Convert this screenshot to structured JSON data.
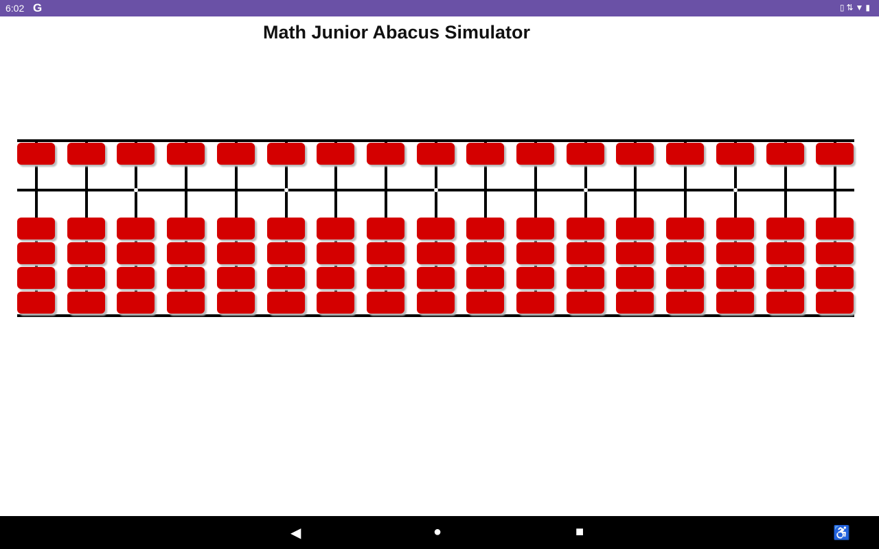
{
  "status_bar": {
    "time": "6:02",
    "google_icon": "G",
    "right_icons": [
      "vibrate-icon",
      "data-icon",
      "wifi-icon",
      "battery-icon"
    ]
  },
  "app": {
    "title": "Math Junior Abacus Simulator"
  },
  "abacus": {
    "rods": 17,
    "upper_beads_per_rod": 1,
    "lower_beads_per_rod": 4,
    "marker_dot_rods": [
      3,
      6,
      9,
      12,
      15
    ],
    "bead_color": "#d40000",
    "frame_color": "#000000",
    "value_shown": 0
  },
  "nav_bar": {
    "buttons": [
      "back",
      "home",
      "recents",
      "accessibility"
    ]
  },
  "colors": {
    "status_bar": "#6a51a6",
    "nav_bar": "#000000"
  }
}
